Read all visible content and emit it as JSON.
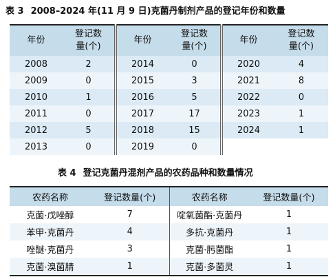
{
  "table3": {
    "caption_label": "表 3",
    "caption_text": "2008–2024 年(11 月 9 日)克菌丹制剂产品的登记年份和数量",
    "col_year": "年份",
    "col_count_line1": "登记数",
    "col_count_line2": "量(个)",
    "rows": [
      [
        {
          "year": "2008",
          "count": "2"
        },
        {
          "year": "2014",
          "count": "0"
        },
        {
          "year": "2020",
          "count": "4"
        }
      ],
      [
        {
          "year": "2009",
          "count": "0"
        },
        {
          "year": "2015",
          "count": "3"
        },
        {
          "year": "2021",
          "count": "8"
        }
      ],
      [
        {
          "year": "2010",
          "count": "1"
        },
        {
          "year": "2016",
          "count": "5"
        },
        {
          "year": "2022",
          "count": "0"
        }
      ],
      [
        {
          "year": "2011",
          "count": "0"
        },
        {
          "year": "2017",
          "count": "17"
        },
        {
          "year": "2023",
          "count": "1"
        }
      ],
      [
        {
          "year": "2012",
          "count": "5"
        },
        {
          "year": "2018",
          "count": "15"
        },
        {
          "year": "2024",
          "count": "1"
        }
      ],
      [
        {
          "year": "2013",
          "count": "0"
        },
        {
          "year": "2019",
          "count": "0"
        }
      ]
    ]
  },
  "table4": {
    "caption_label": "表 4",
    "caption_text": "登记克菌丹混剂产品的农药品种和数量情况",
    "col_name": "农药名称",
    "col_count": "登记数量(个)",
    "rows": [
      [
        {
          "name": "克菌·戊唑醇",
          "count": "7"
        },
        {
          "name": "啶氧菌酯·克菌丹",
          "count": "1"
        }
      ],
      [
        {
          "name": "苯甲·克菌丹",
          "count": "4"
        },
        {
          "name": "多抗·克菌丹",
          "count": "1"
        }
      ],
      [
        {
          "name": "唑醚·克菌丹",
          "count": "3"
        },
        {
          "name": "克菌·肟菌酯",
          "count": "1"
        }
      ],
      [
        {
          "name": "克菌·溴菌腈",
          "count": "1"
        },
        {
          "name": "克菌·多菌灵",
          "count": "1"
        }
      ]
    ]
  }
}
